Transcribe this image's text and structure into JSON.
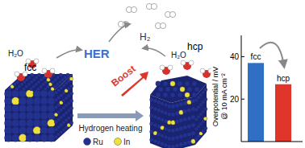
{
  "chart_data": {
    "type": "bar",
    "categories": [
      "fcc",
      "hcp"
    ],
    "values": [
      37,
      27
    ],
    "colors": [
      "#2f6fc4",
      "#e0352b"
    ],
    "ylim": [
      0,
      50
    ],
    "yticks": [
      20,
      40
    ],
    "ylabel": [
      "Overpotential / mV",
      "@ 10 mA cm⁻²"
    ]
  },
  "diagram": {
    "reaction": "HER",
    "product": "H₂",
    "reactant_left": "H₂O",
    "reactant_right": "H₂O",
    "boost": "Boost",
    "process": "Hydrogen heating",
    "phase_left": "fcc",
    "phase_right": "hcp",
    "legend": [
      {
        "label": "Ru",
        "color": "#24328f"
      },
      {
        "label": "In",
        "color": "#f0e03a"
      }
    ]
  }
}
